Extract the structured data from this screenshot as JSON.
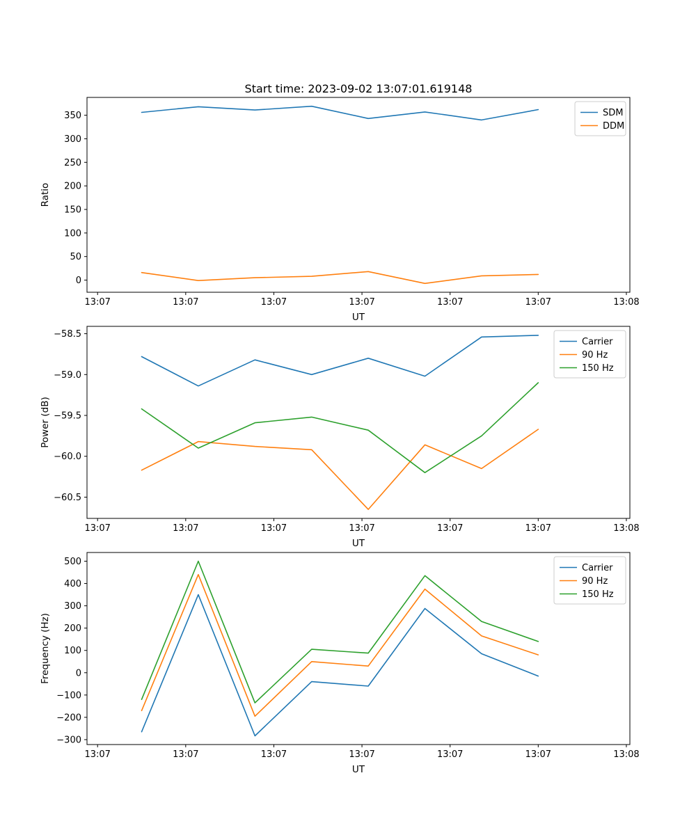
{
  "figure": {
    "title": "Start time: 2023-09-02 13:07:01.619148",
    "background": "#ffffff"
  },
  "chart_data": [
    {
      "type": "line",
      "title": "",
      "xlabel": "UT",
      "ylabel": "Ratio",
      "xlim": [
        -1.2,
        60.4
      ],
      "ylim": [
        -25.8,
        387.8
      ],
      "legend_position": "upper right",
      "grid": false,
      "x_unit": "seconds after 13:07:00 UT",
      "x": [
        5,
        11.43,
        17.86,
        24.29,
        30.71,
        37.14,
        43.57,
        50
      ],
      "x_ticks": {
        "positions": [
          0,
          10,
          20,
          30,
          40,
          50,
          60
        ],
        "labels": [
          "13:07",
          "13:07",
          "13:07",
          "13:07",
          "13:07",
          "13:07",
          "13:08"
        ]
      },
      "y_ticks": {
        "values": [
          0,
          50,
          100,
          150,
          200,
          250,
          300,
          350
        ],
        "labels": [
          "0",
          "50",
          "100",
          "150",
          "200",
          "250",
          "300",
          "350"
        ]
      },
      "series": [
        {
          "name": "SDM",
          "color": "#1f77b4",
          "values": [
            356,
            368,
            361,
            369,
            343,
            357,
            340,
            362
          ]
        },
        {
          "name": "DDM",
          "color": "#ff7f0e",
          "values": [
            16,
            -1,
            5,
            8,
            18,
            -7,
            9,
            12
          ]
        }
      ]
    },
    {
      "type": "line",
      "title": "",
      "xlabel": "UT",
      "ylabel": "Power (dB)",
      "xlim": [
        -1.2,
        60.4
      ],
      "ylim": [
        -60.76,
        -58.41
      ],
      "legend_position": "upper right",
      "grid": false,
      "x_unit": "seconds after 13:07:00 UT",
      "x": [
        5,
        11.43,
        17.86,
        24.29,
        30.71,
        37.14,
        43.57,
        50
      ],
      "x_ticks": {
        "positions": [
          0,
          10,
          20,
          30,
          40,
          50,
          60
        ],
        "labels": [
          "13:07",
          "13:07",
          "13:07",
          "13:07",
          "13:07",
          "13:07",
          "13:08"
        ]
      },
      "y_ticks": {
        "values": [
          -60.5,
          -60.0,
          -59.5,
          -59.0,
          -58.5
        ],
        "labels": [
          "−60.5",
          "−60.0",
          "−59.5",
          "−59.0",
          "−58.5"
        ]
      },
      "series": [
        {
          "name": "Carrier",
          "color": "#1f77b4",
          "values": [
            -58.78,
            -59.14,
            -58.82,
            -59.0,
            -58.8,
            -59.02,
            -58.54,
            -58.52
          ]
        },
        {
          "name": "90 Hz",
          "color": "#ff7f0e",
          "values": [
            -60.17,
            -59.82,
            -59.88,
            -59.92,
            -60.65,
            -59.86,
            -60.15,
            -59.67
          ]
        },
        {
          "name": "150 Hz",
          "color": "#2ca02c",
          "values": [
            -59.42,
            -59.9,
            -59.59,
            -59.52,
            -59.68,
            -60.2,
            -59.75,
            -59.1
          ]
        }
      ]
    },
    {
      "type": "line",
      "title": "",
      "xlabel": "UT",
      "ylabel": "Frequency (Hz)",
      "xlim": [
        -1.2,
        60.4
      ],
      "ylim": [
        -322,
        539
      ],
      "legend_position": "upper right",
      "grid": false,
      "x_unit": "seconds after 13:07:00 UT",
      "x": [
        5,
        11.43,
        17.86,
        24.29,
        30.71,
        37.14,
        43.57,
        50
      ],
      "x_ticks": {
        "positions": [
          0,
          10,
          20,
          30,
          40,
          50,
          60
        ],
        "labels": [
          "13:07",
          "13:07",
          "13:07",
          "13:07",
          "13:07",
          "13:07",
          "13:08"
        ]
      },
      "y_ticks": {
        "values": [
          -300,
          -200,
          -100,
          0,
          100,
          200,
          300,
          400,
          500
        ],
        "labels": [
          "−300",
          "−200",
          "−100",
          "0",
          "100",
          "200",
          "300",
          "400",
          "500"
        ]
      },
      "series": [
        {
          "name": "Carrier",
          "color": "#1f77b4",
          "values": [
            -265,
            350,
            -283,
            -40,
            -60,
            288,
            85,
            -15
          ]
        },
        {
          "name": "90 Hz",
          "color": "#ff7f0e",
          "values": [
            -170,
            440,
            -195,
            50,
            30,
            375,
            165,
            80
          ]
        },
        {
          "name": "150 Hz",
          "color": "#2ca02c",
          "values": [
            -120,
            500,
            -135,
            105,
            88,
            435,
            230,
            140
          ]
        }
      ]
    }
  ]
}
